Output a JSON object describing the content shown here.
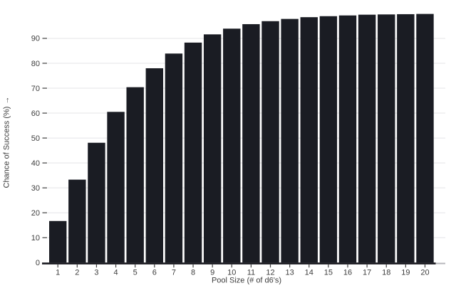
{
  "chart_data": {
    "type": "bar",
    "title": "",
    "xlabel": "Pool Size (# of d6's)",
    "ylabel": "Chance of Success (%) →",
    "categories": [
      "1",
      "2",
      "3",
      "4",
      "5",
      "6",
      "7",
      "8",
      "9",
      "10",
      "11",
      "12",
      "13",
      "14",
      "15",
      "16",
      "17",
      "18",
      "19",
      "20"
    ],
    "values": [
      16.7,
      33.3,
      48.1,
      60.5,
      70.4,
      78.0,
      83.9,
      88.3,
      91.6,
      93.9,
      95.7,
      96.9,
      97.8,
      98.5,
      98.9,
      99.2,
      99.5,
      99.6,
      99.7,
      99.8
    ],
    "ylim": [
      0,
      100
    ],
    "yticks": [
      0,
      10,
      20,
      30,
      40,
      50,
      60,
      70,
      80,
      90
    ],
    "grid": "horizontal gridlines at 10-90, no top border, no legend",
    "legend_position": "none",
    "colors": {
      "bar": "#1a1c23",
      "grid": "#e4e4e7",
      "axis": "#17171d",
      "axis_end_stub": "#b7b7bb",
      "tick_mark": "#3f3f3f",
      "tick_text": "#3d3d3d",
      "background": "#ffffff"
    }
  }
}
